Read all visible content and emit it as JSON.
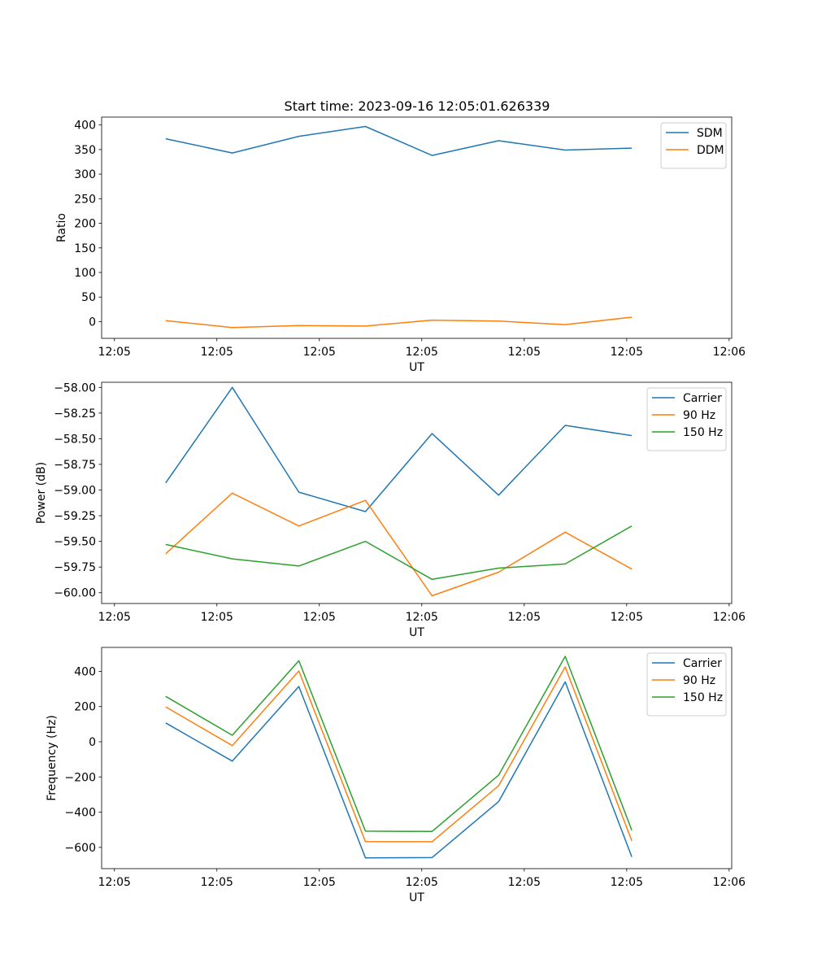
{
  "figure_title": "Start time: 2023-09-16 12:05:01.626339",
  "colors": {
    "c0": "#1f77b4",
    "c1": "#ff7f0e",
    "c2": "#2ca02c",
    "frame": "#000000",
    "legend_frame": "#cccccc"
  },
  "chart_data": [
    {
      "type": "line",
      "title": "Start time: 2023-09-16 12:05:01.626339",
      "xlabel": "UT",
      "ylabel": "Ratio",
      "xticks": [
        0,
        1,
        2,
        3,
        4,
        5,
        6
      ],
      "xtick_labels": [
        "12:05",
        "12:05",
        "12:05",
        "12:05",
        "12:05",
        "12:05",
        "12:06"
      ],
      "xlim": [
        -0.125,
        6.025
      ],
      "yticks": [
        0,
        50,
        100,
        150,
        200,
        250,
        300,
        350,
        400
      ],
      "ytick_labels": [
        "0",
        "50",
        "100",
        "150",
        "200",
        "250",
        "300",
        "350",
        "400"
      ],
      "ylim": [
        -34,
        416
      ],
      "legend_position": "top-right",
      "x": [
        0.5,
        1.15,
        1.8,
        2.45,
        3.1,
        3.75,
        4.4,
        5.05
      ],
      "series": [
        {
          "name": "SDM",
          "color": "#1f77b4",
          "values": [
            372,
            343,
            377,
            397,
            338,
            368,
            349,
            353
          ]
        },
        {
          "name": "DDM",
          "color": "#ff7f0e",
          "values": [
            2,
            -12,
            -8,
            -9,
            3,
            1,
            -6,
            9
          ]
        }
      ]
    },
    {
      "type": "line",
      "xlabel": "UT",
      "ylabel": "Power (dB)",
      "xticks": [
        0,
        1,
        2,
        3,
        4,
        5,
        6
      ],
      "xtick_labels": [
        "12:05",
        "12:05",
        "12:05",
        "12:05",
        "12:05",
        "12:05",
        "12:06"
      ],
      "xlim": [
        -0.125,
        6.025
      ],
      "yticks": [
        -60.0,
        -59.75,
        -59.5,
        -59.25,
        -59.0,
        -58.75,
        -58.5,
        -58.25,
        -58.0
      ],
      "ytick_labels": [
        "−60.00",
        "−59.75",
        "−59.50",
        "−59.25",
        "−59.00",
        "−58.75",
        "−58.50",
        "−58.25",
        "−58.00"
      ],
      "ylim": [
        -60.105,
        -57.95
      ],
      "legend_position": "top-right",
      "x": [
        0.5,
        1.15,
        1.8,
        2.45,
        3.1,
        3.75,
        4.4,
        5.05
      ],
      "series": [
        {
          "name": "Carrier",
          "color": "#1f77b4",
          "values": [
            -58.93,
            -58.0,
            -59.02,
            -59.21,
            -58.45,
            -59.05,
            -58.37,
            -58.47
          ]
        },
        {
          "name": "90 Hz",
          "color": "#ff7f0e",
          "values": [
            -59.62,
            -59.03,
            -59.35,
            -59.1,
            -60.03,
            -59.8,
            -59.41,
            -59.77
          ]
        },
        {
          "name": "150 Hz",
          "color": "#2ca02c",
          "values": [
            -59.53,
            -59.67,
            -59.74,
            -59.5,
            -59.87,
            -59.76,
            -59.72,
            -59.35
          ]
        }
      ]
    },
    {
      "type": "line",
      "xlabel": "UT",
      "ylabel": "Frequency (Hz)",
      "xticks": [
        0,
        1,
        2,
        3,
        4,
        5,
        6
      ],
      "xtick_labels": [
        "12:05",
        "12:05",
        "12:05",
        "12:05",
        "12:05",
        "12:05",
        "12:06"
      ],
      "xlim": [
        -0.125,
        6.025
      ],
      "yticks": [
        -600,
        -400,
        -200,
        0,
        200,
        400
      ],
      "ytick_labels": [
        "−600",
        "−400",
        "−200",
        "0",
        "200",
        "400"
      ],
      "ylim": [
        -721,
        536
      ],
      "legend_position": "top-right",
      "x": [
        0.5,
        1.15,
        1.8,
        2.45,
        3.1,
        3.75,
        4.4,
        5.05
      ],
      "series": [
        {
          "name": "Carrier",
          "color": "#1f77b4",
          "values": [
            107,
            -110,
            314,
            -660,
            -658,
            -340,
            340,
            -654
          ]
        },
        {
          "name": "90 Hz",
          "color": "#ff7f0e",
          "values": [
            198,
            -22,
            402,
            -568,
            -568,
            -250,
            425,
            -563
          ]
        },
        {
          "name": "150 Hz",
          "color": "#2ca02c",
          "values": [
            258,
            37,
            460,
            -508,
            -510,
            -190,
            485,
            -503
          ]
        }
      ]
    }
  ]
}
